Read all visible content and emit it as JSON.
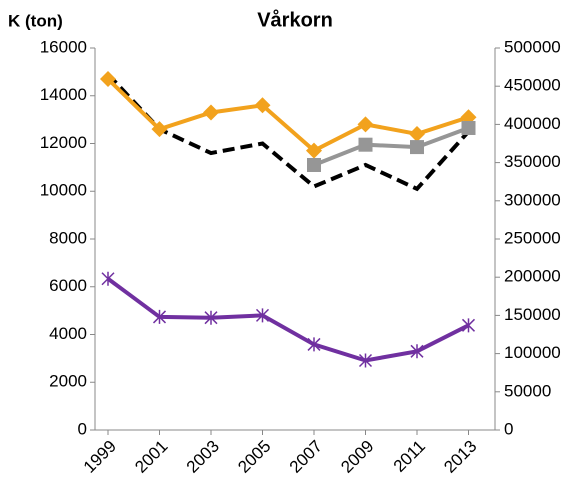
{
  "chart_data": {
    "type": "line",
    "title": "Vårkorn",
    "y_label": "K (ton)",
    "categories": [
      "1999",
      "2001",
      "2003",
      "2005",
      "2007",
      "2009",
      "2011",
      "2013"
    ],
    "ylim": [
      0,
      16000
    ],
    "yticks": [
      0,
      2000,
      4000,
      6000,
      8000,
      10000,
      12000,
      14000,
      16000
    ],
    "y2lim": [
      0,
      500000
    ],
    "y2ticks": [
      0,
      50000,
      100000,
      150000,
      200000,
      250000,
      300000,
      350000,
      400000,
      450000,
      500000
    ],
    "grid": false,
    "series": [
      {
        "color": "#000000",
        "dash": true,
        "marker": "none",
        "values": [
          14900,
          12600,
          11600,
          12000,
          10200,
          11100,
          10100,
          12500
        ]
      },
      {
        "color": "#f2a21d",
        "marker": "diamond",
        "values": [
          14700,
          12600,
          13300,
          13600,
          11700,
          12800,
          12400,
          13100
        ]
      },
      {
        "color": "#969696",
        "marker": "square",
        "values": [
          null,
          null,
          null,
          null,
          11100,
          11950,
          11850,
          12650
        ]
      },
      {
        "color": "#7030a0",
        "marker": "star",
        "axis": "y2",
        "values": [
          198000,
          148000,
          147000,
          150000,
          112000,
          91000,
          103000,
          137000
        ]
      }
    ]
  }
}
